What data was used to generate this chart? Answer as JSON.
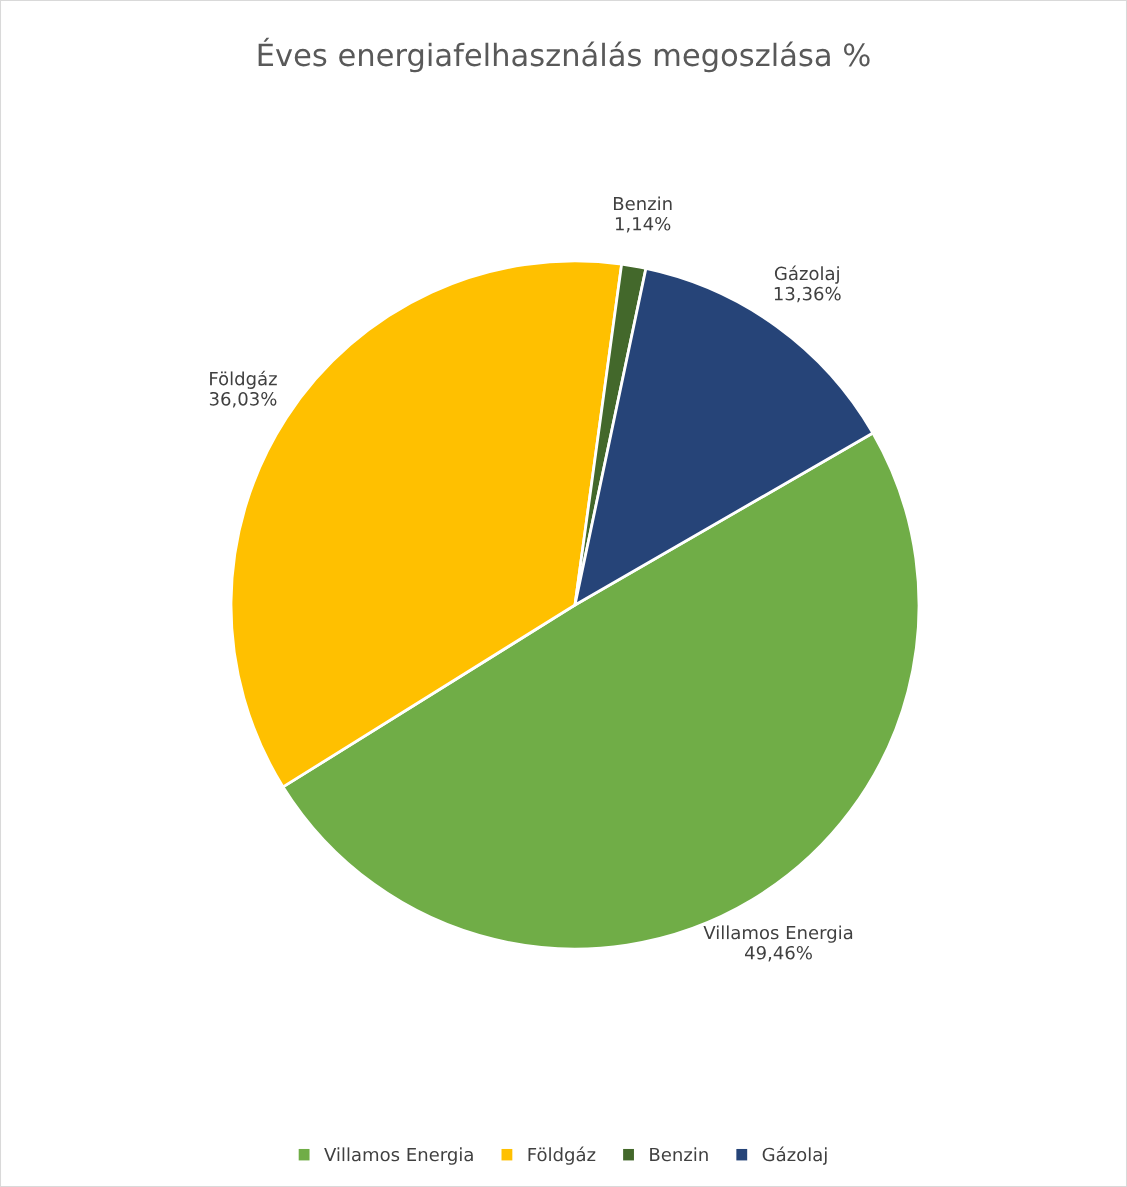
{
  "chart_data": {
    "type": "pie",
    "title": "Éves energiafelhasználás megoszlása %",
    "categories": [
      "Villamos Energia",
      "Földgáz",
      "Benzin",
      "Gázolaj"
    ],
    "values": [
      49.46,
      36.03,
      1.14,
      13.36
    ],
    "value_labels": [
      "49,46%",
      "36,03%",
      "1,14%",
      "13,36%"
    ],
    "colors": [
      "#70ad47",
      "#ffc000",
      "#43682b",
      "#264478"
    ],
    "legend": "bottom"
  }
}
